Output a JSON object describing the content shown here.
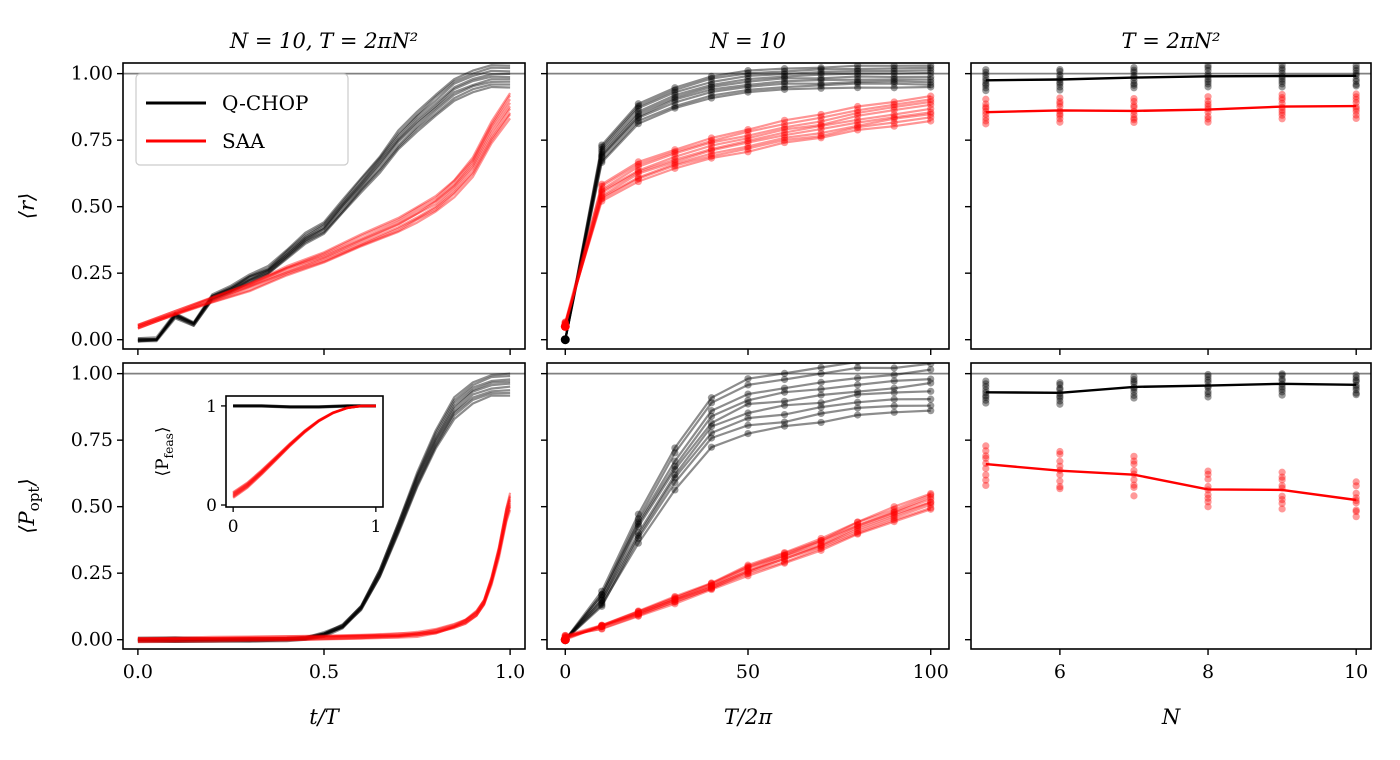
{
  "chart_data": {
    "type": "line",
    "colors": {
      "qchop": "#000000",
      "saa": "#ff0000",
      "reference": "#808080"
    },
    "legend": {
      "position": "top-left",
      "entries": [
        "Q-CHOP",
        "SAA"
      ]
    },
    "panels": [
      {
        "id": "r-vs-t",
        "row": 0,
        "col": 0,
        "title": "N = 10, T = 2πN²",
        "ylabel": "⟨r⟩",
        "xlim": [
          -0.04,
          1.04
        ],
        "ylim": [
          -0.035,
          1.04
        ],
        "yticks": [
          0,
          0.25,
          0.5,
          0.75,
          1.0
        ],
        "ytick_labels": [
          "0.00",
          "0.25",
          "0.50",
          "0.75",
          "1.00"
        ],
        "xticks": [
          0,
          0.5,
          1.0
        ],
        "reference_line": 1.0,
        "series": [
          {
            "name": "Q-CHOP",
            "x": [
              0,
              0.05,
              0.1,
              0.15,
              0.2,
              0.25,
              0.3,
              0.35,
              0.4,
              0.45,
              0.5,
              0.55,
              0.6,
              0.65,
              0.7,
              0.75,
              0.8,
              0.85,
              0.9,
              0.95,
              1.0
            ],
            "y": [
              0,
              0.0,
              0.09,
              0.06,
              0.16,
              0.19,
              0.23,
              0.26,
              0.32,
              0.38,
              0.42,
              0.5,
              0.58,
              0.66,
              0.75,
              0.82,
              0.88,
              0.94,
              0.97,
              0.99,
              0.99
            ]
          },
          {
            "name": "SAA",
            "x": [
              0,
              0.1,
              0.2,
              0.3,
              0.4,
              0.5,
              0.6,
              0.7,
              0.75,
              0.8,
              0.85,
              0.9,
              0.95,
              1.0
            ],
            "y": [
              0.05,
              0.1,
              0.15,
              0.2,
              0.26,
              0.31,
              0.37,
              0.43,
              0.47,
              0.51,
              0.57,
              0.65,
              0.78,
              0.88
            ]
          }
        ]
      },
      {
        "id": "r-vs-T",
        "row": 0,
        "col": 1,
        "title": "N = 10",
        "xlim": [
          -5,
          105
        ],
        "ylim": [
          -0.035,
          1.04
        ],
        "yticks": [
          0,
          0.25,
          0.5,
          0.75,
          1.0
        ],
        "xticks": [
          0,
          50,
          100
        ],
        "reference_line": 1.0,
        "series": [
          {
            "name": "Q-CHOP",
            "x": [
              0,
              10,
              20,
              30,
              40,
              50,
              60,
              70,
              80,
              90,
              100
            ],
            "y": [
              0,
              0.7,
              0.85,
              0.91,
              0.95,
              0.97,
              0.98,
              0.985,
              0.99,
              0.99,
              0.99
            ]
          },
          {
            "name": "SAA",
            "x": [
              0,
              10,
              20,
              30,
              40,
              50,
              60,
              70,
              80,
              90,
              100
            ],
            "y": [
              0.05,
              0.55,
              0.63,
              0.68,
              0.72,
              0.75,
              0.78,
              0.8,
              0.83,
              0.85,
              0.87
            ]
          }
        ]
      },
      {
        "id": "r-vs-N",
        "row": 0,
        "col": 2,
        "title": "T = 2πN²",
        "xlim": [
          4.8,
          10.2
        ],
        "ylim": [
          -0.035,
          1.04
        ],
        "yticks": [
          0,
          0.25,
          0.5,
          0.75,
          1.0
        ],
        "xticks": [
          6,
          8,
          10
        ],
        "reference_line": 1.0,
        "series": [
          {
            "name": "Q-CHOP",
            "x": [
              5,
              6,
              7,
              8,
              9,
              10
            ],
            "y": [
              0.975,
              0.978,
              0.985,
              0.99,
              0.991,
              0.992
            ]
          },
          {
            "name": "SAA",
            "x": [
              5,
              6,
              7,
              8,
              9,
              10
            ],
            "y": [
              0.855,
              0.862,
              0.86,
              0.865,
              0.876,
              0.878
            ]
          }
        ]
      },
      {
        "id": "popt-vs-t",
        "row": 1,
        "col": 0,
        "ylabel": "⟨P_opt⟩",
        "xlabel": "t/T",
        "xlim": [
          -0.04,
          1.04
        ],
        "ylim": [
          -0.035,
          1.04
        ],
        "yticks": [
          0,
          0.25,
          0.5,
          0.75,
          1.0
        ],
        "ytick_labels": [
          "0.00",
          "0.25",
          "0.50",
          "0.75",
          "1.00"
        ],
        "xticks": [
          0,
          0.5,
          1.0
        ],
        "xtick_labels": [
          "0.0",
          "0.5",
          "1.0"
        ],
        "reference_line": 1.0,
        "series": [
          {
            "name": "Q-CHOP",
            "x": [
              0,
              0.1,
              0.2,
              0.3,
              0.4,
              0.45,
              0.5,
              0.55,
              0.6,
              0.65,
              0.7,
              0.75,
              0.8,
              0.85,
              0.9,
              0.95,
              1.0
            ],
            "y": [
              0,
              0,
              0,
              0,
              0.002,
              0.005,
              0.02,
              0.05,
              0.12,
              0.25,
              0.42,
              0.6,
              0.75,
              0.87,
              0.93,
              0.955,
              0.96
            ]
          },
          {
            "name": "SAA",
            "x": [
              0,
              0.2,
              0.4,
              0.6,
              0.7,
              0.75,
              0.8,
              0.85,
              0.88,
              0.91,
              0.93,
              0.95,
              0.97,
              0.99,
              1.0
            ],
            "y": [
              0,
              0.003,
              0.006,
              0.01,
              0.015,
              0.02,
              0.03,
              0.05,
              0.07,
              0.1,
              0.14,
              0.22,
              0.33,
              0.47,
              0.52
            ]
          }
        ],
        "inset": {
          "ylabel": "⟨P_feas⟩",
          "xlim": [
            -0.05,
            1.05
          ],
          "ylim": [
            -0.02,
            1.1
          ],
          "xticks": [
            0,
            1
          ],
          "yticks": [
            0,
            1
          ],
          "series": [
            {
              "name": "Q-CHOP",
              "x": [
                0,
                0.2,
                0.4,
                0.6,
                0.8,
                1.0
              ],
              "y": [
                1.0,
                1.0,
                0.99,
                0.99,
                1.0,
                1.0
              ]
            },
            {
              "name": "SAA",
              "x": [
                0,
                0.1,
                0.2,
                0.3,
                0.4,
                0.5,
                0.6,
                0.7,
                0.8,
                0.9,
                1.0
              ],
              "y": [
                0.1,
                0.2,
                0.33,
                0.47,
                0.61,
                0.74,
                0.85,
                0.93,
                0.98,
                1.0,
                1.0
              ]
            }
          ]
        }
      },
      {
        "id": "popt-vs-T",
        "row": 1,
        "col": 1,
        "xlabel": "T/2π",
        "xlim": [
          -5,
          105
        ],
        "ylim": [
          -0.035,
          1.04
        ],
        "yticks": [
          0,
          0.25,
          0.5,
          0.75,
          1.0
        ],
        "xticks": [
          0,
          50,
          100
        ],
        "reference_line": 1.0,
        "series": [
          {
            "name": "Q-CHOP",
            "x": [
              0,
              10,
              20,
              30,
              40,
              50,
              60,
              70,
              80,
              90,
              100
            ],
            "y": [
              0,
              0.15,
              0.42,
              0.64,
              0.82,
              0.88,
              0.9,
              0.92,
              0.94,
              0.95,
              0.96
            ]
          },
          {
            "name": "SAA",
            "x": [
              0,
              10,
              20,
              30,
              40,
              50,
              60,
              70,
              80,
              90,
              100
            ],
            "y": [
              0,
              0.05,
              0.1,
              0.15,
              0.2,
              0.26,
              0.31,
              0.36,
              0.42,
              0.47,
              0.52
            ]
          }
        ]
      },
      {
        "id": "popt-vs-N",
        "row": 1,
        "col": 2,
        "xlabel": "N",
        "xlim": [
          4.8,
          10.2
        ],
        "ylim": [
          -0.035,
          1.04
        ],
        "yticks": [
          0,
          0.25,
          0.5,
          0.75,
          1.0
        ],
        "xticks": [
          6,
          8,
          10
        ],
        "reference_line": 1.0,
        "series": [
          {
            "name": "Q-CHOP",
            "x": [
              5,
              6,
              7,
              8,
              9,
              10
            ],
            "y": [
              0.93,
              0.928,
              0.95,
              0.955,
              0.962,
              0.958
            ]
          },
          {
            "name": "SAA",
            "x": [
              5,
              6,
              7,
              8,
              9,
              10
            ],
            "y": [
              0.66,
              0.635,
              0.62,
              0.565,
              0.563,
              0.525
            ]
          }
        ]
      }
    ]
  }
}
